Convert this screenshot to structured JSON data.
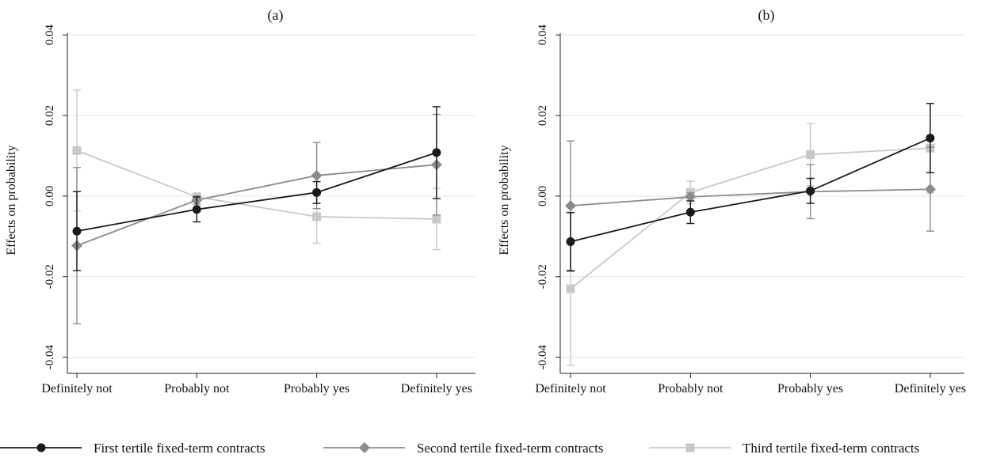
{
  "chart_data": [
    {
      "type": "line",
      "title": "(a)",
      "xlabel": "",
      "ylabel": "Effects on probability",
      "categories": [
        "Definitely not",
        "Probably not",
        "Probably yes",
        "Definitely yes"
      ],
      "ylim": [
        -0.044,
        0.042
      ],
      "yticks": [
        -0.04,
        -0.02,
        0.0,
        0.02,
        0.04
      ],
      "ytick_labels": [
        "-0.04",
        "-0.02",
        "0.00",
        "0.02",
        "0.04"
      ],
      "grid": true,
      "error_bars": true,
      "series": [
        {
          "name": "Third tertile fixed-term contracts",
          "color": "#c8c8c8",
          "marker": "square",
          "values": [
            0.0113,
            -0.0002,
            -0.0051,
            -0.0057
          ],
          "ci_low": [
            -0.0037,
            -0.0012,
            -0.0117,
            -0.0133
          ],
          "ci_high": [
            0.0263,
            0.0008,
            0.0015,
            0.0019
          ]
        },
        {
          "name": "Second tertile fixed-term contracts",
          "color": "#8c8c8c",
          "marker": "diamond",
          "values": [
            -0.0123,
            -0.001,
            0.0051,
            0.0078
          ],
          "ci_low": [
            -0.0317,
            -0.002,
            -0.0031,
            -0.0047
          ],
          "ci_high": [
            0.0071,
            0.0,
            0.0133,
            0.0203
          ]
        },
        {
          "name": "First tertile fixed-term contracts",
          "color": "#1a1a1a",
          "marker": "circle",
          "values": [
            -0.0087,
            -0.0033,
            0.0009,
            0.0108
          ],
          "ci_low": [
            -0.0185,
            -0.0064,
            -0.0018,
            -0.0006
          ],
          "ci_high": [
            0.0011,
            -0.0002,
            0.0036,
            0.0222
          ]
        }
      ]
    },
    {
      "type": "line",
      "title": "(b)",
      "xlabel": "",
      "ylabel": "Effects on probability",
      "categories": [
        "Definitely not",
        "Probably not",
        "Probably yes",
        "Definitely yes"
      ],
      "ylim": [
        -0.044,
        0.042
      ],
      "yticks": [
        -0.04,
        -0.02,
        0.0,
        0.02,
        0.04
      ],
      "ytick_labels": [
        "-0.04",
        "-0.02",
        "0.00",
        "0.02",
        "0.04"
      ],
      "grid": true,
      "error_bars": true,
      "series": [
        {
          "name": "Third tertile fixed-term contracts",
          "color": "#c8c8c8",
          "marker": "square",
          "values": [
            -0.023,
            0.0009,
            0.0103,
            0.0119
          ],
          "ci_low": [
            -0.042,
            -0.0019,
            0.0026,
            0.0008
          ],
          "ci_high": [
            -0.004,
            0.0037,
            0.018,
            0.023
          ]
        },
        {
          "name": "Second tertile fixed-term contracts",
          "color": "#8c8c8c",
          "marker": "diamond",
          "values": [
            -0.0024,
            -0.0002,
            0.0011,
            0.0017
          ],
          "ci_low": [
            -0.0187,
            -0.0012,
            -0.0056,
            -0.0087
          ],
          "ci_high": [
            0.0137,
            0.0008,
            0.0078,
            0.0121
          ]
        },
        {
          "name": "First tertile fixed-term contracts",
          "color": "#1a1a1a",
          "marker": "circle",
          "values": [
            -0.0113,
            -0.004,
            0.0013,
            0.0144
          ],
          "ci_low": [
            -0.0185,
            -0.0068,
            -0.0018,
            0.0058
          ],
          "ci_high": [
            -0.0041,
            -0.0012,
            0.0044,
            0.023
          ]
        }
      ]
    }
  ],
  "legend": {
    "position": "bottom",
    "items": [
      {
        "label": "First tertile fixed-term contracts",
        "color": "#1a1a1a",
        "marker": "circle"
      },
      {
        "label": "Second tertile fixed-term contracts",
        "color": "#8c8c8c",
        "marker": "diamond"
      },
      {
        "label": "Third tertile fixed-term contracts",
        "color": "#c8c8c8",
        "marker": "square"
      }
    ]
  }
}
